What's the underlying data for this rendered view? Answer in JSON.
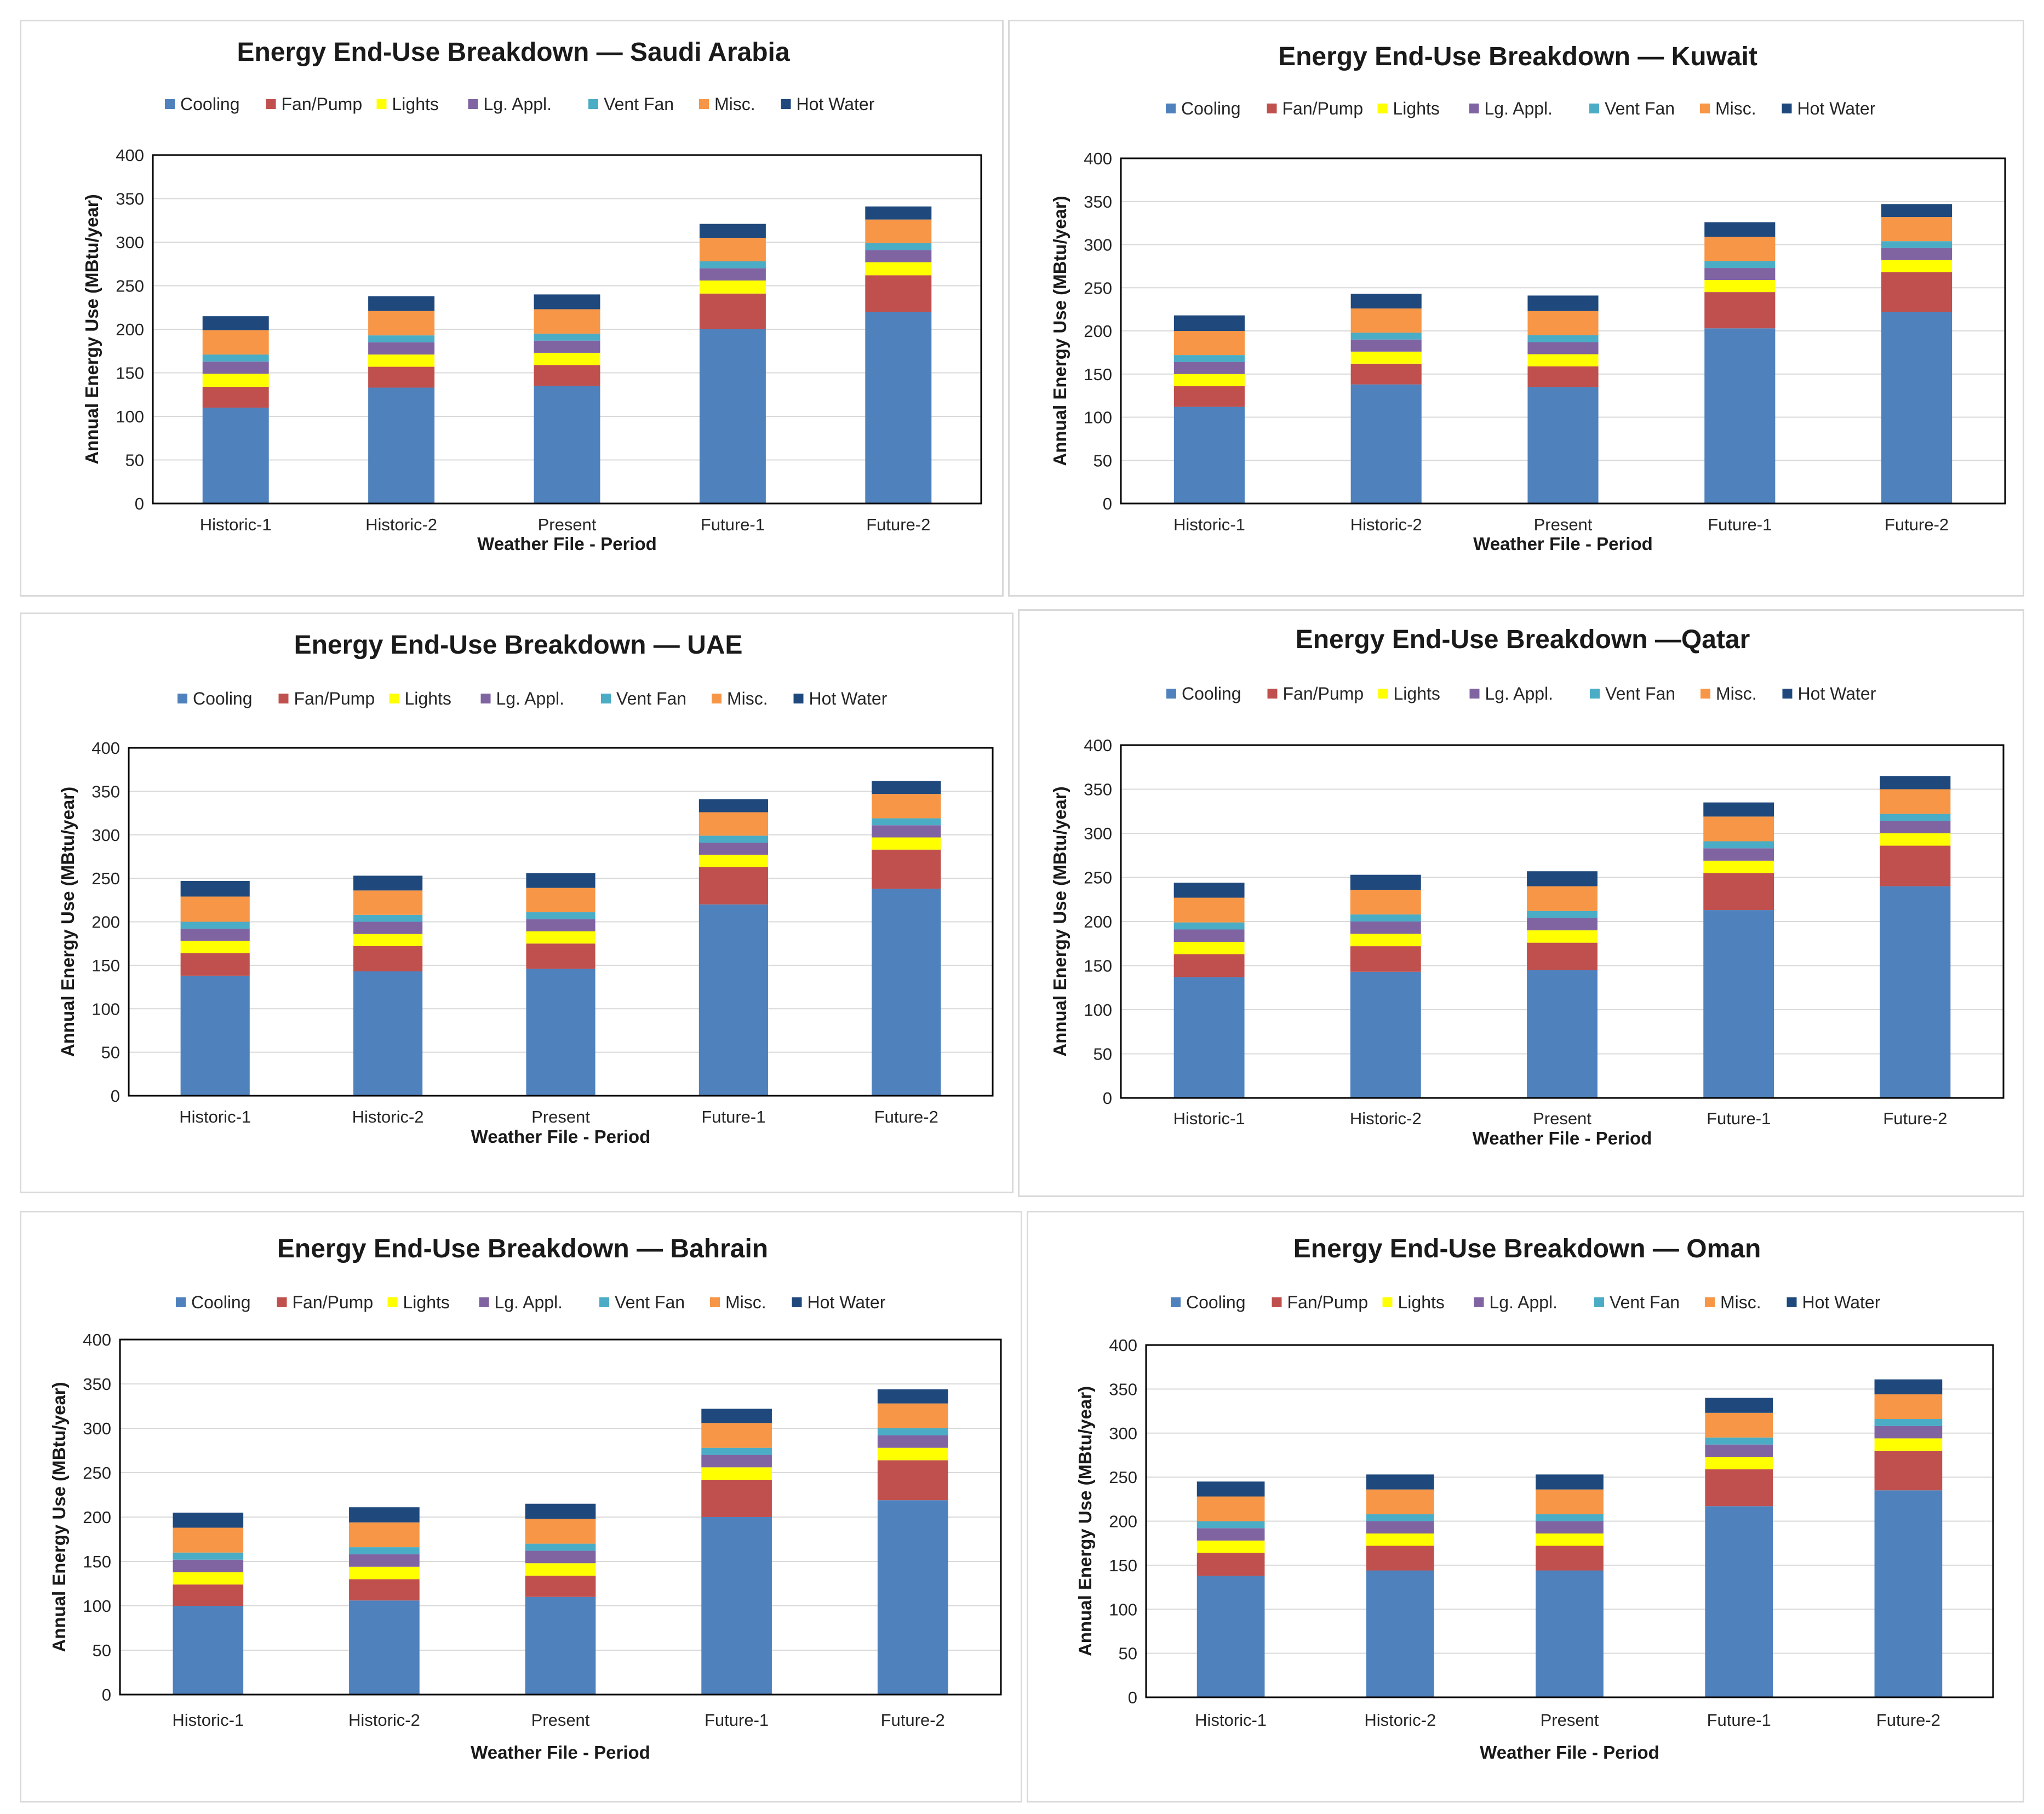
{
  "legend": {
    "items": [
      {
        "name": "Cooling",
        "color": "#4F81BD"
      },
      {
        "name": "Fan/Pump",
        "color": "#C0504D"
      },
      {
        "name": "Lights",
        "color": "#FFFF00"
      },
      {
        "name": "Lg. Appl.",
        "color": "#8064A2"
      },
      {
        "name": "Vent Fan",
        "color": "#4BACC6"
      },
      {
        "name": "Misc.",
        "color": "#F79646"
      },
      {
        "name": "Hot Water",
        "color": "#1F497D"
      }
    ]
  },
  "chart_data": [
    {
      "type": "bar",
      "stacked": true,
      "title": "Energy End-Use Breakdown — Saudi Arabia",
      "xlabel": "Weather File - Period",
      "ylabel": "Annual Energy Use (MBtu/year)",
      "ylim": [
        0,
        400
      ],
      "yticks": [
        0,
        50,
        100,
        150,
        200,
        250,
        300,
        350,
        400
      ],
      "legend_position": "top",
      "grid": true,
      "categories": [
        "Historic-1",
        "Historic-2",
        "Present",
        "Future-1",
        "Future-2"
      ],
      "series": [
        {
          "name": "Cooling",
          "values": [
            110,
            133,
            135,
            200,
            220
          ]
        },
        {
          "name": "Fan/Pump",
          "values": [
            24,
            24,
            24,
            41,
            42
          ]
        },
        {
          "name": "Lights",
          "values": [
            15,
            14,
            14,
            15,
            15
          ]
        },
        {
          "name": "Lg. Appl.",
          "values": [
            14,
            14,
            14,
            14,
            14
          ]
        },
        {
          "name": "Vent Fan",
          "values": [
            8,
            8,
            8,
            8,
            8
          ]
        },
        {
          "name": "Misc.",
          "values": [
            28,
            28,
            28,
            27,
            27
          ]
        },
        {
          "name": "Hot Water",
          "values": [
            16,
            17,
            17,
            16,
            15
          ]
        }
      ]
    },
    {
      "type": "bar",
      "stacked": true,
      "title": "Energy End-Use Breakdown — Kuwait",
      "xlabel": "Weather  File - Period",
      "ylabel": "Annual Energy Use (MBtu/year)",
      "ylim": [
        0,
        400
      ],
      "yticks": [
        0,
        50,
        100,
        150,
        200,
        250,
        300,
        350,
        400
      ],
      "legend_position": "top",
      "grid": true,
      "categories": [
        "Historic-1",
        "Historic-2",
        "Present",
        "Future-1",
        "Future-2"
      ],
      "series": [
        {
          "name": "Cooling",
          "values": [
            112,
            138,
            135,
            203,
            222
          ]
        },
        {
          "name": "Fan/Pump",
          "values": [
            24,
            24,
            24,
            42,
            46
          ]
        },
        {
          "name": "Lights",
          "values": [
            14,
            14,
            14,
            14,
            14
          ]
        },
        {
          "name": "Lg. Appl.",
          "values": [
            14,
            14,
            14,
            14,
            14
          ]
        },
        {
          "name": "Vent Fan",
          "values": [
            8,
            8,
            8,
            8,
            8
          ]
        },
        {
          "name": "Misc.",
          "values": [
            28,
            28,
            28,
            28,
            28
          ]
        },
        {
          "name": "Hot Water",
          "values": [
            18,
            17,
            18,
            17,
            15
          ]
        }
      ]
    },
    {
      "type": "bar",
      "stacked": true,
      "title": "Energy End-Use Breakdown — UAE",
      "xlabel": "Weather File - Period",
      "ylabel": "Annual Energy Use (MBtu/year)",
      "ylim": [
        0,
        400
      ],
      "yticks": [
        0,
        50,
        100,
        150,
        200,
        250,
        300,
        350,
        400
      ],
      "legend_position": "top",
      "grid": true,
      "categories": [
        "Historic-1",
        "Historic-2",
        "Present",
        "Future-1",
        "Future-2"
      ],
      "series": [
        {
          "name": "Cooling",
          "values": [
            138,
            143,
            146,
            220,
            238
          ]
        },
        {
          "name": "Fan/Pump",
          "values": [
            26,
            29,
            29,
            43,
            45
          ]
        },
        {
          "name": "Lights",
          "values": [
            14,
            14,
            14,
            14,
            14
          ]
        },
        {
          "name": "Lg. Appl.",
          "values": [
            14,
            14,
            14,
            14,
            14
          ]
        },
        {
          "name": "Vent Fan",
          "values": [
            8,
            8,
            8,
            8,
            8
          ]
        },
        {
          "name": "Misc.",
          "values": [
            29,
            28,
            28,
            27,
            28
          ]
        },
        {
          "name": "Hot Water",
          "values": [
            18,
            17,
            17,
            15,
            15
          ]
        }
      ]
    },
    {
      "type": "bar",
      "stacked": true,
      "title": "Energy End-Use Breakdown —Qatar",
      "xlabel": "Weather File - Period",
      "ylabel": "Annual Energy Use (MBtu/year)",
      "ylim": [
        0,
        400
      ],
      "yticks": [
        0,
        50,
        100,
        150,
        200,
        250,
        300,
        350,
        400
      ],
      "legend_position": "top",
      "grid": true,
      "categories": [
        "Historic-1",
        "Historic-2",
        "Present",
        "Future-1",
        "Future-2"
      ],
      "series": [
        {
          "name": "Cooling",
          "values": [
            137,
            143,
            145,
            213,
            240
          ]
        },
        {
          "name": "Fan/Pump",
          "values": [
            26,
            29,
            31,
            42,
            46
          ]
        },
        {
          "name": "Lights",
          "values": [
            14,
            14,
            14,
            14,
            14
          ]
        },
        {
          "name": "Lg. Appl.",
          "values": [
            14,
            14,
            14,
            14,
            14
          ]
        },
        {
          "name": "Vent Fan",
          "values": [
            8,
            8,
            8,
            8,
            8
          ]
        },
        {
          "name": "Misc.",
          "values": [
            28,
            28,
            28,
            28,
            28
          ]
        },
        {
          "name": "Hot Water",
          "values": [
            17,
            17,
            17,
            16,
            15
          ]
        }
      ]
    },
    {
      "type": "bar",
      "stacked": true,
      "title": "Energy End-Use Breakdown — Bahrain",
      "xlabel": "Weather File - Period",
      "ylabel": "Annual Energy Use (MBtu/year)",
      "ylim": [
        0,
        400
      ],
      "yticks": [
        0,
        50,
        100,
        150,
        200,
        250,
        300,
        350,
        400
      ],
      "legend_position": "top",
      "grid": true,
      "categories": [
        "Historic-1",
        "Historic-2",
        "Present",
        "Future-1",
        "Future-2"
      ],
      "series": [
        {
          "name": "Cooling",
          "values": [
            100,
            106,
            110,
            200,
            219
          ]
        },
        {
          "name": "Fan/Pump",
          "values": [
            24,
            24,
            24,
            42,
            45
          ]
        },
        {
          "name": "Lights",
          "values": [
            14,
            14,
            14,
            14,
            14
          ]
        },
        {
          "name": "Lg. Appl.",
          "values": [
            14,
            14,
            14,
            14,
            14
          ]
        },
        {
          "name": "Vent Fan",
          "values": [
            8,
            8,
            8,
            8,
            8
          ]
        },
        {
          "name": "Misc.",
          "values": [
            28,
            28,
            28,
            28,
            28
          ]
        },
        {
          "name": "Hot Water",
          "values": [
            17,
            17,
            17,
            16,
            16
          ]
        }
      ]
    },
    {
      "type": "bar",
      "stacked": true,
      "title": "Energy End-Use Breakdown — Oman",
      "xlabel": "Weather File - Period",
      "ylabel": "Annual Energy Use (MBtu/year)",
      "ylim": [
        0,
        400
      ],
      "yticks": [
        0,
        50,
        100,
        150,
        200,
        250,
        300,
        350,
        400
      ],
      "legend_position": "top",
      "grid": true,
      "categories": [
        "Historic-1",
        "Historic-2",
        "Present",
        "Future-1",
        "Future-2"
      ],
      "series": [
        {
          "name": "Cooling",
          "values": [
            138,
            144,
            144,
            217,
            235
          ]
        },
        {
          "name": "Fan/Pump",
          "values": [
            26,
            28,
            28,
            42,
            45
          ]
        },
        {
          "name": "Lights",
          "values": [
            14,
            14,
            14,
            14,
            14
          ]
        },
        {
          "name": "Lg. Appl.",
          "values": [
            14,
            14,
            14,
            14,
            14
          ]
        },
        {
          "name": "Vent Fan",
          "values": [
            8,
            8,
            8,
            8,
            8
          ]
        },
        {
          "name": "Misc.",
          "values": [
            28,
            28,
            28,
            28,
            28
          ]
        },
        {
          "name": "Hot Water",
          "values": [
            17,
            17,
            17,
            17,
            17
          ]
        }
      ]
    }
  ]
}
